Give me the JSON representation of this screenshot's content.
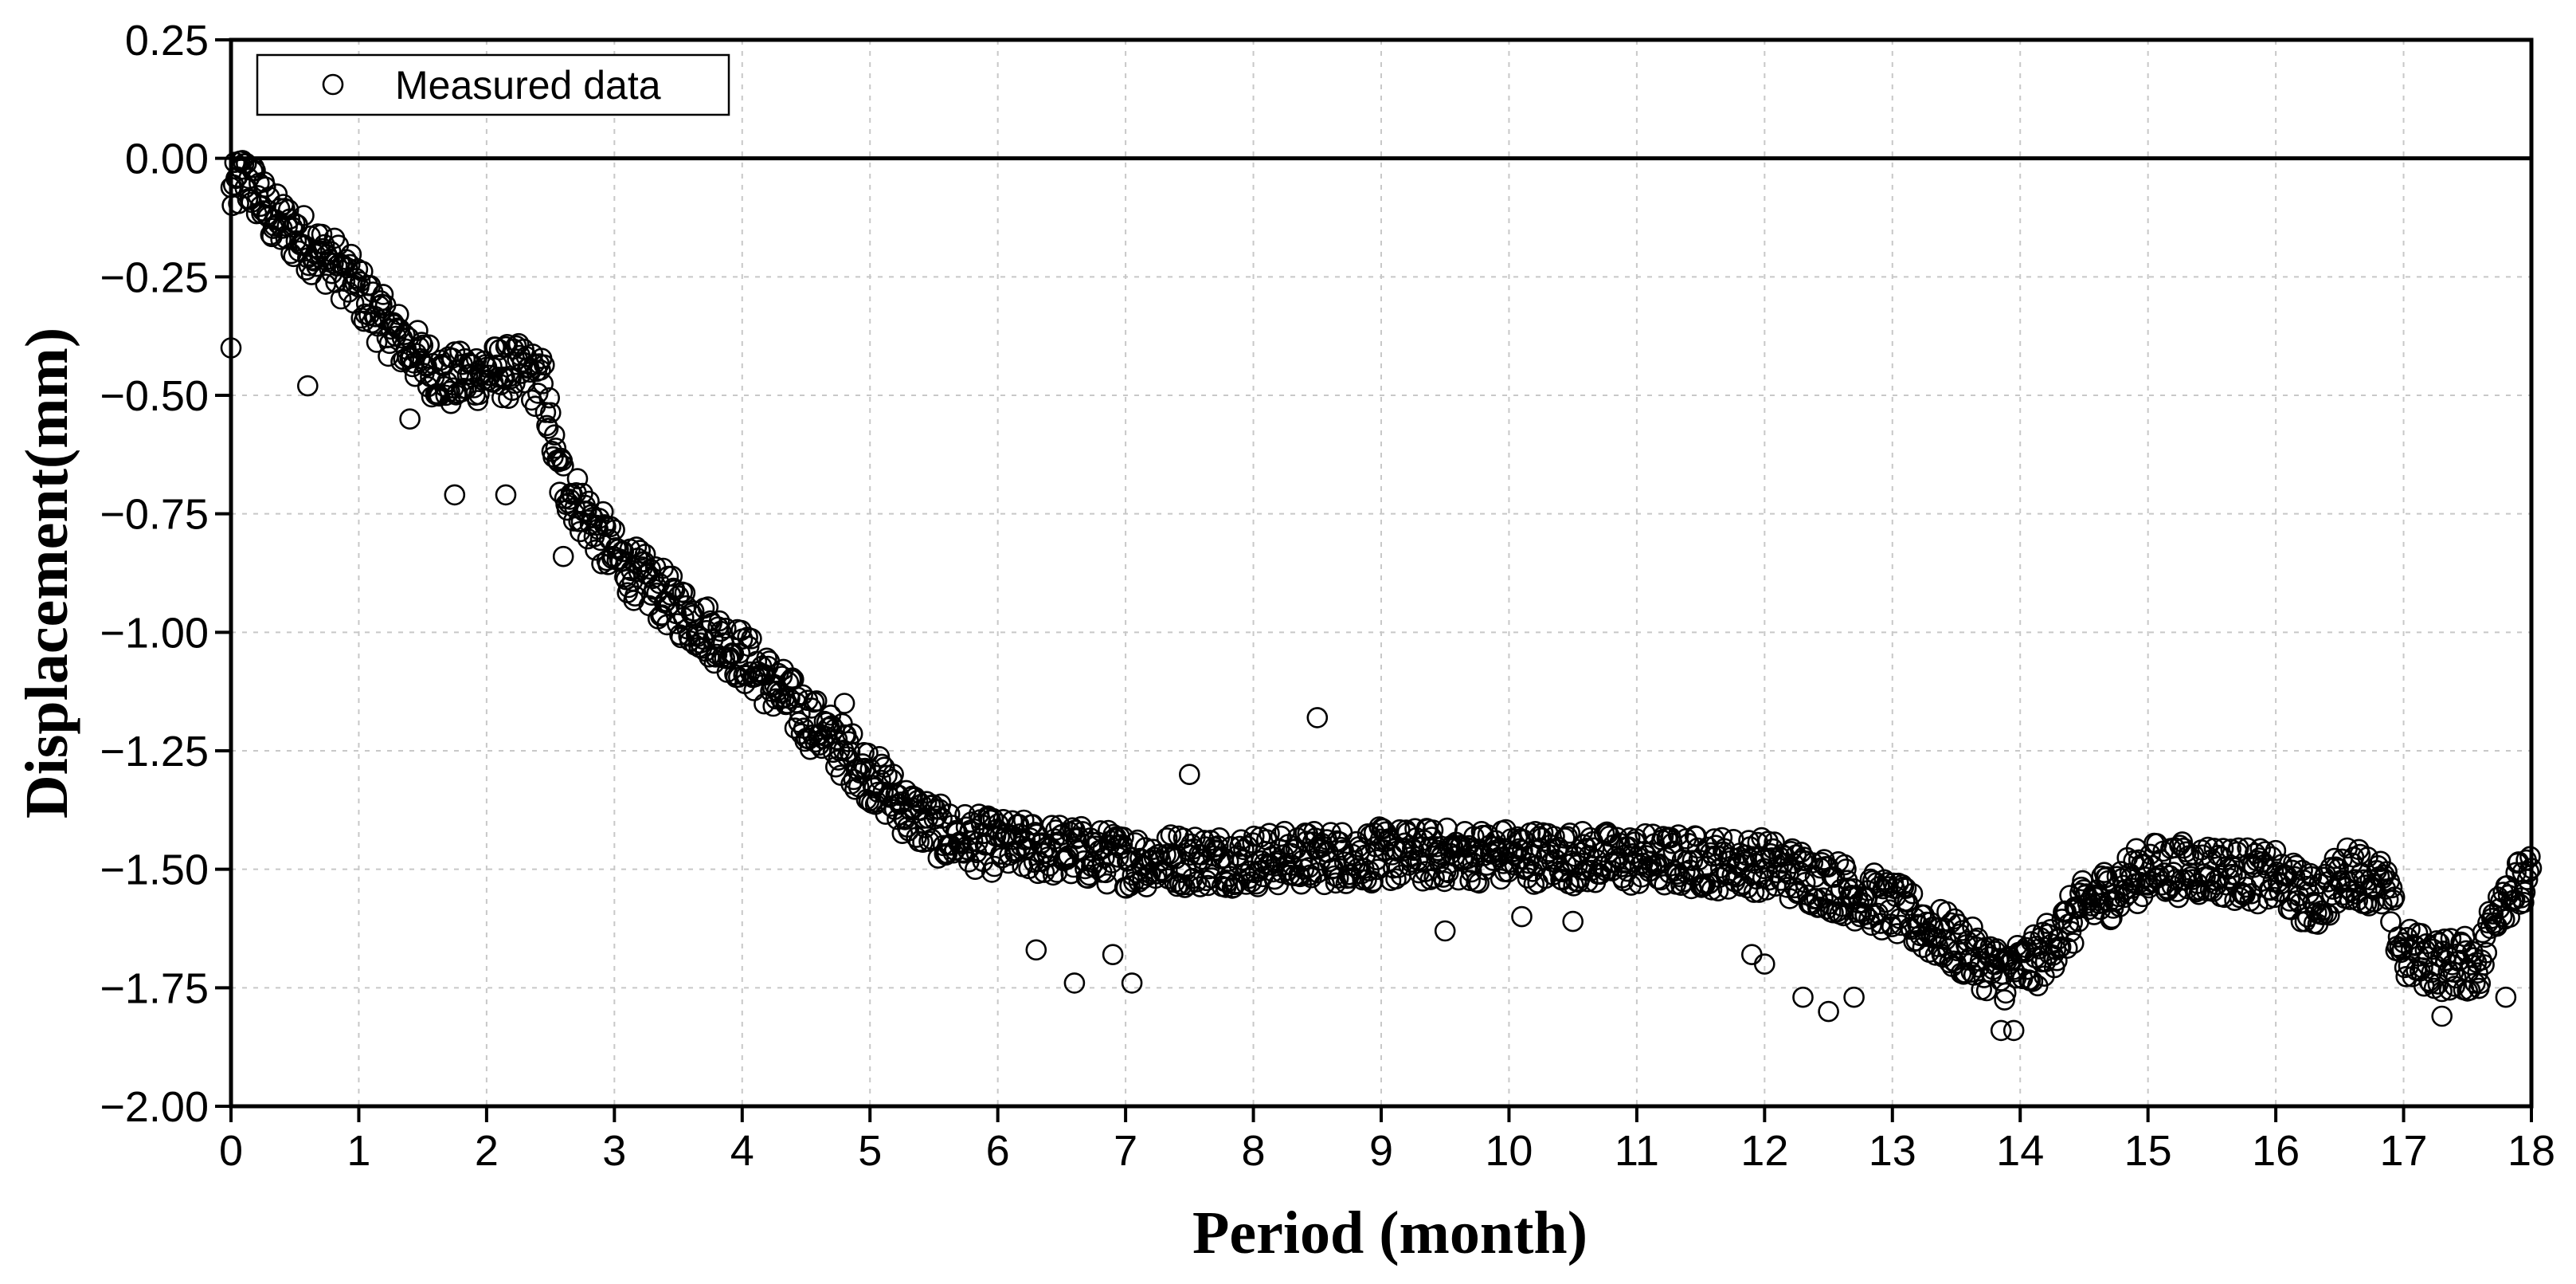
{
  "chart_data": {
    "type": "scatter",
    "title": "",
    "xlabel": "Period (month)",
    "ylabel": "Displacement(mm)",
    "xlim": [
      0,
      18
    ],
    "ylim": [
      -2.0,
      0.25
    ],
    "x_ticks": [
      "0",
      "1",
      "2",
      "3",
      "4",
      "5",
      "6",
      "7",
      "8",
      "9",
      "10",
      "11",
      "12",
      "13",
      "14",
      "15",
      "16",
      "17",
      "18"
    ],
    "y_ticks": [
      "0.25",
      "0.00",
      "−0.25",
      "−0.50",
      "−0.75",
      "−1.00",
      "−1.25",
      "−1.50",
      "−1.75",
      "−2.00"
    ],
    "reference_line_y": 0.0,
    "grid": true,
    "legend": {
      "placement": "top-left",
      "entries": [
        "Measured data"
      ]
    },
    "marker": "open-circle",
    "series": [
      {
        "name": "Measured data",
        "trend_x": [
          0,
          0.1,
          0.2,
          0.3,
          0.5,
          0.8,
          1.0,
          1.2,
          1.5,
          1.7,
          2.0,
          2.3,
          2.45,
          2.55,
          2.8,
          3.0,
          3.5,
          4.0,
          4.5,
          5.0,
          5.3,
          5.6,
          6.0,
          6.5,
          7.0,
          8.0,
          9.0,
          10.0,
          11.0,
          12.0,
          12.5,
          13.0,
          13.5,
          13.85,
          14.1,
          14.5,
          15.0,
          15.5,
          16.0,
          16.3,
          16.6,
          16.85,
          17.0,
          17.3,
          17.6,
          17.75,
          18.0
        ],
        "trend_y": [
          -0.08,
          -0.04,
          -0.07,
          -0.12,
          -0.16,
          -0.22,
          -0.28,
          -0.35,
          -0.43,
          -0.47,
          -0.45,
          -0.45,
          -0.48,
          -0.66,
          -0.76,
          -0.84,
          -0.95,
          -1.05,
          -1.18,
          -1.3,
          -1.38,
          -1.43,
          -1.45,
          -1.46,
          -1.48,
          -1.48,
          -1.47,
          -1.47,
          -1.48,
          -1.49,
          -1.53,
          -1.58,
          -1.66,
          -1.72,
          -1.7,
          -1.58,
          -1.5,
          -1.5,
          -1.52,
          -1.57,
          -1.5,
          -1.54,
          -1.68,
          -1.7,
          -1.7,
          -1.55,
          -1.53
        ],
        "band_half_width": 0.06,
        "point_count": 1800,
        "outliers": [
          {
            "x": 0.0,
            "y": -0.4
          },
          {
            "x": 0.6,
            "y": -0.48
          },
          {
            "x": 1.4,
            "y": -0.55
          },
          {
            "x": 1.75,
            "y": -0.71
          },
          {
            "x": 2.15,
            "y": -0.71
          },
          {
            "x": 2.6,
            "y": -0.84
          },
          {
            "x": 4.8,
            "y": -1.15
          },
          {
            "x": 6.3,
            "y": -1.67
          },
          {
            "x": 6.6,
            "y": -1.74
          },
          {
            "x": 6.9,
            "y": -1.68
          },
          {
            "x": 7.05,
            "y": -1.74
          },
          {
            "x": 7.5,
            "y": -1.3
          },
          {
            "x": 8.5,
            "y": -1.18
          },
          {
            "x": 9.5,
            "y": -1.63
          },
          {
            "x": 10.1,
            "y": -1.6
          },
          {
            "x": 10.5,
            "y": -1.61
          },
          {
            "x": 11.9,
            "y": -1.68
          },
          {
            "x": 12.0,
            "y": -1.7
          },
          {
            "x": 12.3,
            "y": -1.77
          },
          {
            "x": 12.5,
            "y": -1.8
          },
          {
            "x": 12.7,
            "y": -1.77
          },
          {
            "x": 13.85,
            "y": -1.84
          },
          {
            "x": 13.95,
            "y": -1.84
          },
          {
            "x": 17.3,
            "y": -1.81
          },
          {
            "x": 17.8,
            "y": -1.77
          }
        ]
      }
    ]
  }
}
